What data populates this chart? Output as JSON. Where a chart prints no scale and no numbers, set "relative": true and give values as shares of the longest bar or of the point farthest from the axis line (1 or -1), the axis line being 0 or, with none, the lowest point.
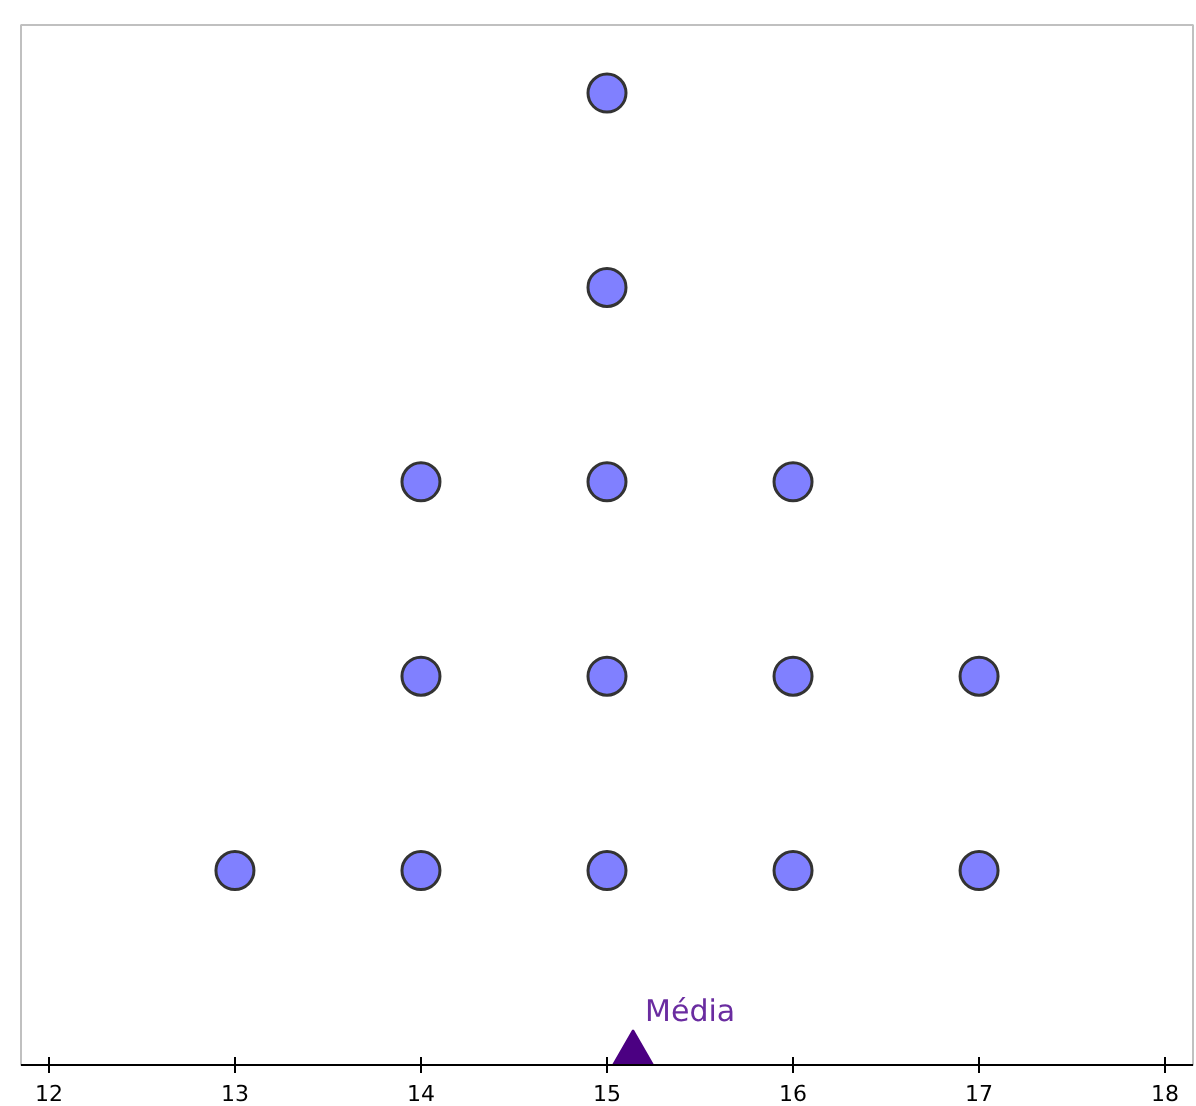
{
  "chart_data": {
    "type": "scatter",
    "relative": true,
    "xlim": [
      11.85,
      18.15
    ],
    "xticks": [
      12,
      13,
      14,
      15,
      16,
      17,
      18
    ],
    "tick_labels": "x",
    "marker": "circle",
    "grid": false,
    "series": [
      {
        "color": "#8080ff",
        "x": [
          13,
          14,
          14,
          14,
          15,
          15,
          15,
          15,
          15,
          16,
          16,
          16,
          17,
          17
        ],
        "values": [
          0.2,
          0.2,
          0.4,
          0.6,
          0.2,
          0.4,
          0.6,
          0.8,
          1.0,
          0.2,
          0.4,
          0.6,
          0.2,
          0.4
        ]
      },
      {
        "name": "Média",
        "color": "#4b0082",
        "marker": "triangle",
        "x": [
          15.14
        ],
        "values": [
          0
        ]
      }
    ]
  }
}
